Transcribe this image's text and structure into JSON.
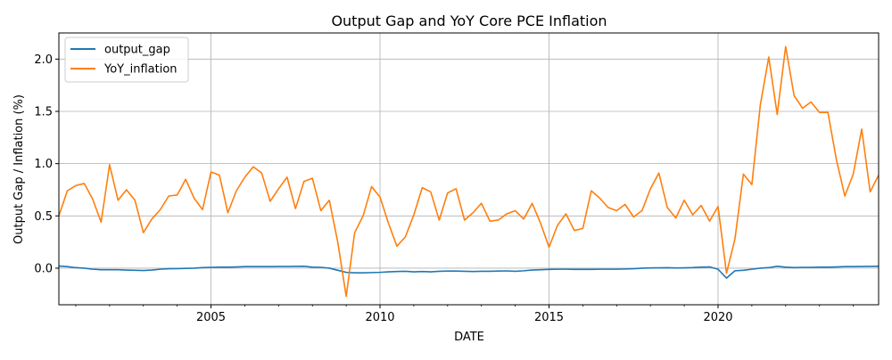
{
  "chart_data": {
    "type": "line",
    "title": "Output Gap and YoY Core PCE Inflation",
    "xlabel": "DATE",
    "ylabel": "Output Gap / Inflation (%)",
    "xlim": [
      2000.5,
      2024.75
    ],
    "ylim": [
      -0.35,
      2.25
    ],
    "x_ticks": [
      2005,
      2010,
      2015,
      2020
    ],
    "y_ticks": [
      0.0,
      0.5,
      1.0,
      1.5,
      2.0
    ],
    "y_tick_labels": [
      "0.0",
      "0.5",
      "1.0",
      "1.5",
      "2.0"
    ],
    "grid": true,
    "legend_position": "top-left",
    "colors": {
      "output_gap": "#1f77b4",
      "YoY_inflation": "#ff7f0e"
    },
    "x": [
      2000.5,
      2000.75,
      2001.0,
      2001.25,
      2001.5,
      2001.75,
      2002.0,
      2002.25,
      2002.5,
      2002.75,
      2003.0,
      2003.25,
      2003.5,
      2003.75,
      2004.0,
      2004.25,
      2004.5,
      2004.75,
      2005.0,
      2005.25,
      2005.5,
      2005.75,
      2006.0,
      2006.25,
      2006.5,
      2006.75,
      2007.0,
      2007.25,
      2007.5,
      2007.75,
      2008.0,
      2008.25,
      2008.5,
      2008.75,
      2009.0,
      2009.25,
      2009.5,
      2009.75,
      2010.0,
      2010.25,
      2010.5,
      2010.75,
      2011.0,
      2011.25,
      2011.5,
      2011.75,
      2012.0,
      2012.25,
      2012.5,
      2012.75,
      2013.0,
      2013.25,
      2013.5,
      2013.75,
      2014.0,
      2014.25,
      2014.5,
      2014.75,
      2015.0,
      2015.25,
      2015.5,
      2015.75,
      2016.0,
      2016.25,
      2016.5,
      2016.75,
      2017.0,
      2017.25,
      2017.5,
      2017.75,
      2018.0,
      2018.25,
      2018.5,
      2018.75,
      2019.0,
      2019.25,
      2019.5,
      2019.75,
      2020.0,
      2020.25,
      2020.5,
      2020.75,
      2021.0,
      2021.25,
      2021.5,
      2021.75,
      2022.0,
      2022.25,
      2022.5,
      2022.75,
      2023.0,
      2023.25,
      2023.5,
      2023.75,
      2024.0,
      2024.25,
      2024.5,
      2024.75
    ],
    "series": [
      {
        "name": "output_gap",
        "values": [
          0.02,
          0.015,
          0.005,
          0.0,
          -0.01,
          -0.015,
          -0.015,
          -0.015,
          -0.018,
          -0.02,
          -0.022,
          -0.018,
          -0.01,
          -0.005,
          -0.004,
          -0.002,
          0.0,
          0.005,
          0.008,
          0.01,
          0.01,
          0.012,
          0.015,
          0.015,
          0.015,
          0.015,
          0.016,
          0.016,
          0.017,
          0.018,
          0.01,
          0.008,
          0.0,
          -0.02,
          -0.04,
          -0.045,
          -0.045,
          -0.042,
          -0.04,
          -0.035,
          -0.032,
          -0.03,
          -0.035,
          -0.032,
          -0.035,
          -0.03,
          -0.028,
          -0.028,
          -0.03,
          -0.032,
          -0.03,
          -0.03,
          -0.028,
          -0.026,
          -0.03,
          -0.025,
          -0.018,
          -0.015,
          -0.012,
          -0.01,
          -0.01,
          -0.012,
          -0.012,
          -0.012,
          -0.01,
          -0.01,
          -0.01,
          -0.008,
          -0.005,
          0.0,
          0.002,
          0.003,
          0.004,
          0.002,
          0.003,
          0.005,
          0.01,
          0.012,
          -0.01,
          -0.095,
          -0.025,
          -0.02,
          -0.01,
          0.0,
          0.005,
          0.018,
          0.01,
          0.005,
          0.008,
          0.008,
          0.01,
          0.01,
          0.012,
          0.015,
          0.015,
          0.016,
          0.017,
          0.018
        ]
      },
      {
        "name": "YoY_inflation",
        "values": [
          0.5,
          0.74,
          0.79,
          0.81,
          0.66,
          0.44,
          0.99,
          0.65,
          0.75,
          0.65,
          0.34,
          0.47,
          0.56,
          0.69,
          0.7,
          0.85,
          0.67,
          0.56,
          0.92,
          0.89,
          0.53,
          0.74,
          0.87,
          0.97,
          0.91,
          0.64,
          0.76,
          0.87,
          0.57,
          0.83,
          0.86,
          0.55,
          0.65,
          0.25,
          -0.27,
          0.34,
          0.5,
          0.78,
          0.68,
          0.43,
          0.21,
          0.3,
          0.51,
          0.77,
          0.73,
          0.46,
          0.72,
          0.76,
          0.46,
          0.53,
          0.62,
          0.45,
          0.46,
          0.52,
          0.55,
          0.47,
          0.62,
          0.43,
          0.2,
          0.41,
          0.52,
          0.36,
          0.38,
          0.74,
          0.67,
          0.58,
          0.55,
          0.61,
          0.49,
          0.55,
          0.76,
          0.91,
          0.58,
          0.48,
          0.65,
          0.51,
          0.6,
          0.45,
          0.59,
          -0.05,
          0.28,
          0.9,
          0.8,
          1.56,
          2.02,
          1.47,
          2.12,
          1.65,
          1.53,
          1.59,
          1.49,
          1.49,
          1.04,
          0.69,
          0.9,
          1.33,
          0.73,
          0.89
        ]
      }
    ]
  }
}
